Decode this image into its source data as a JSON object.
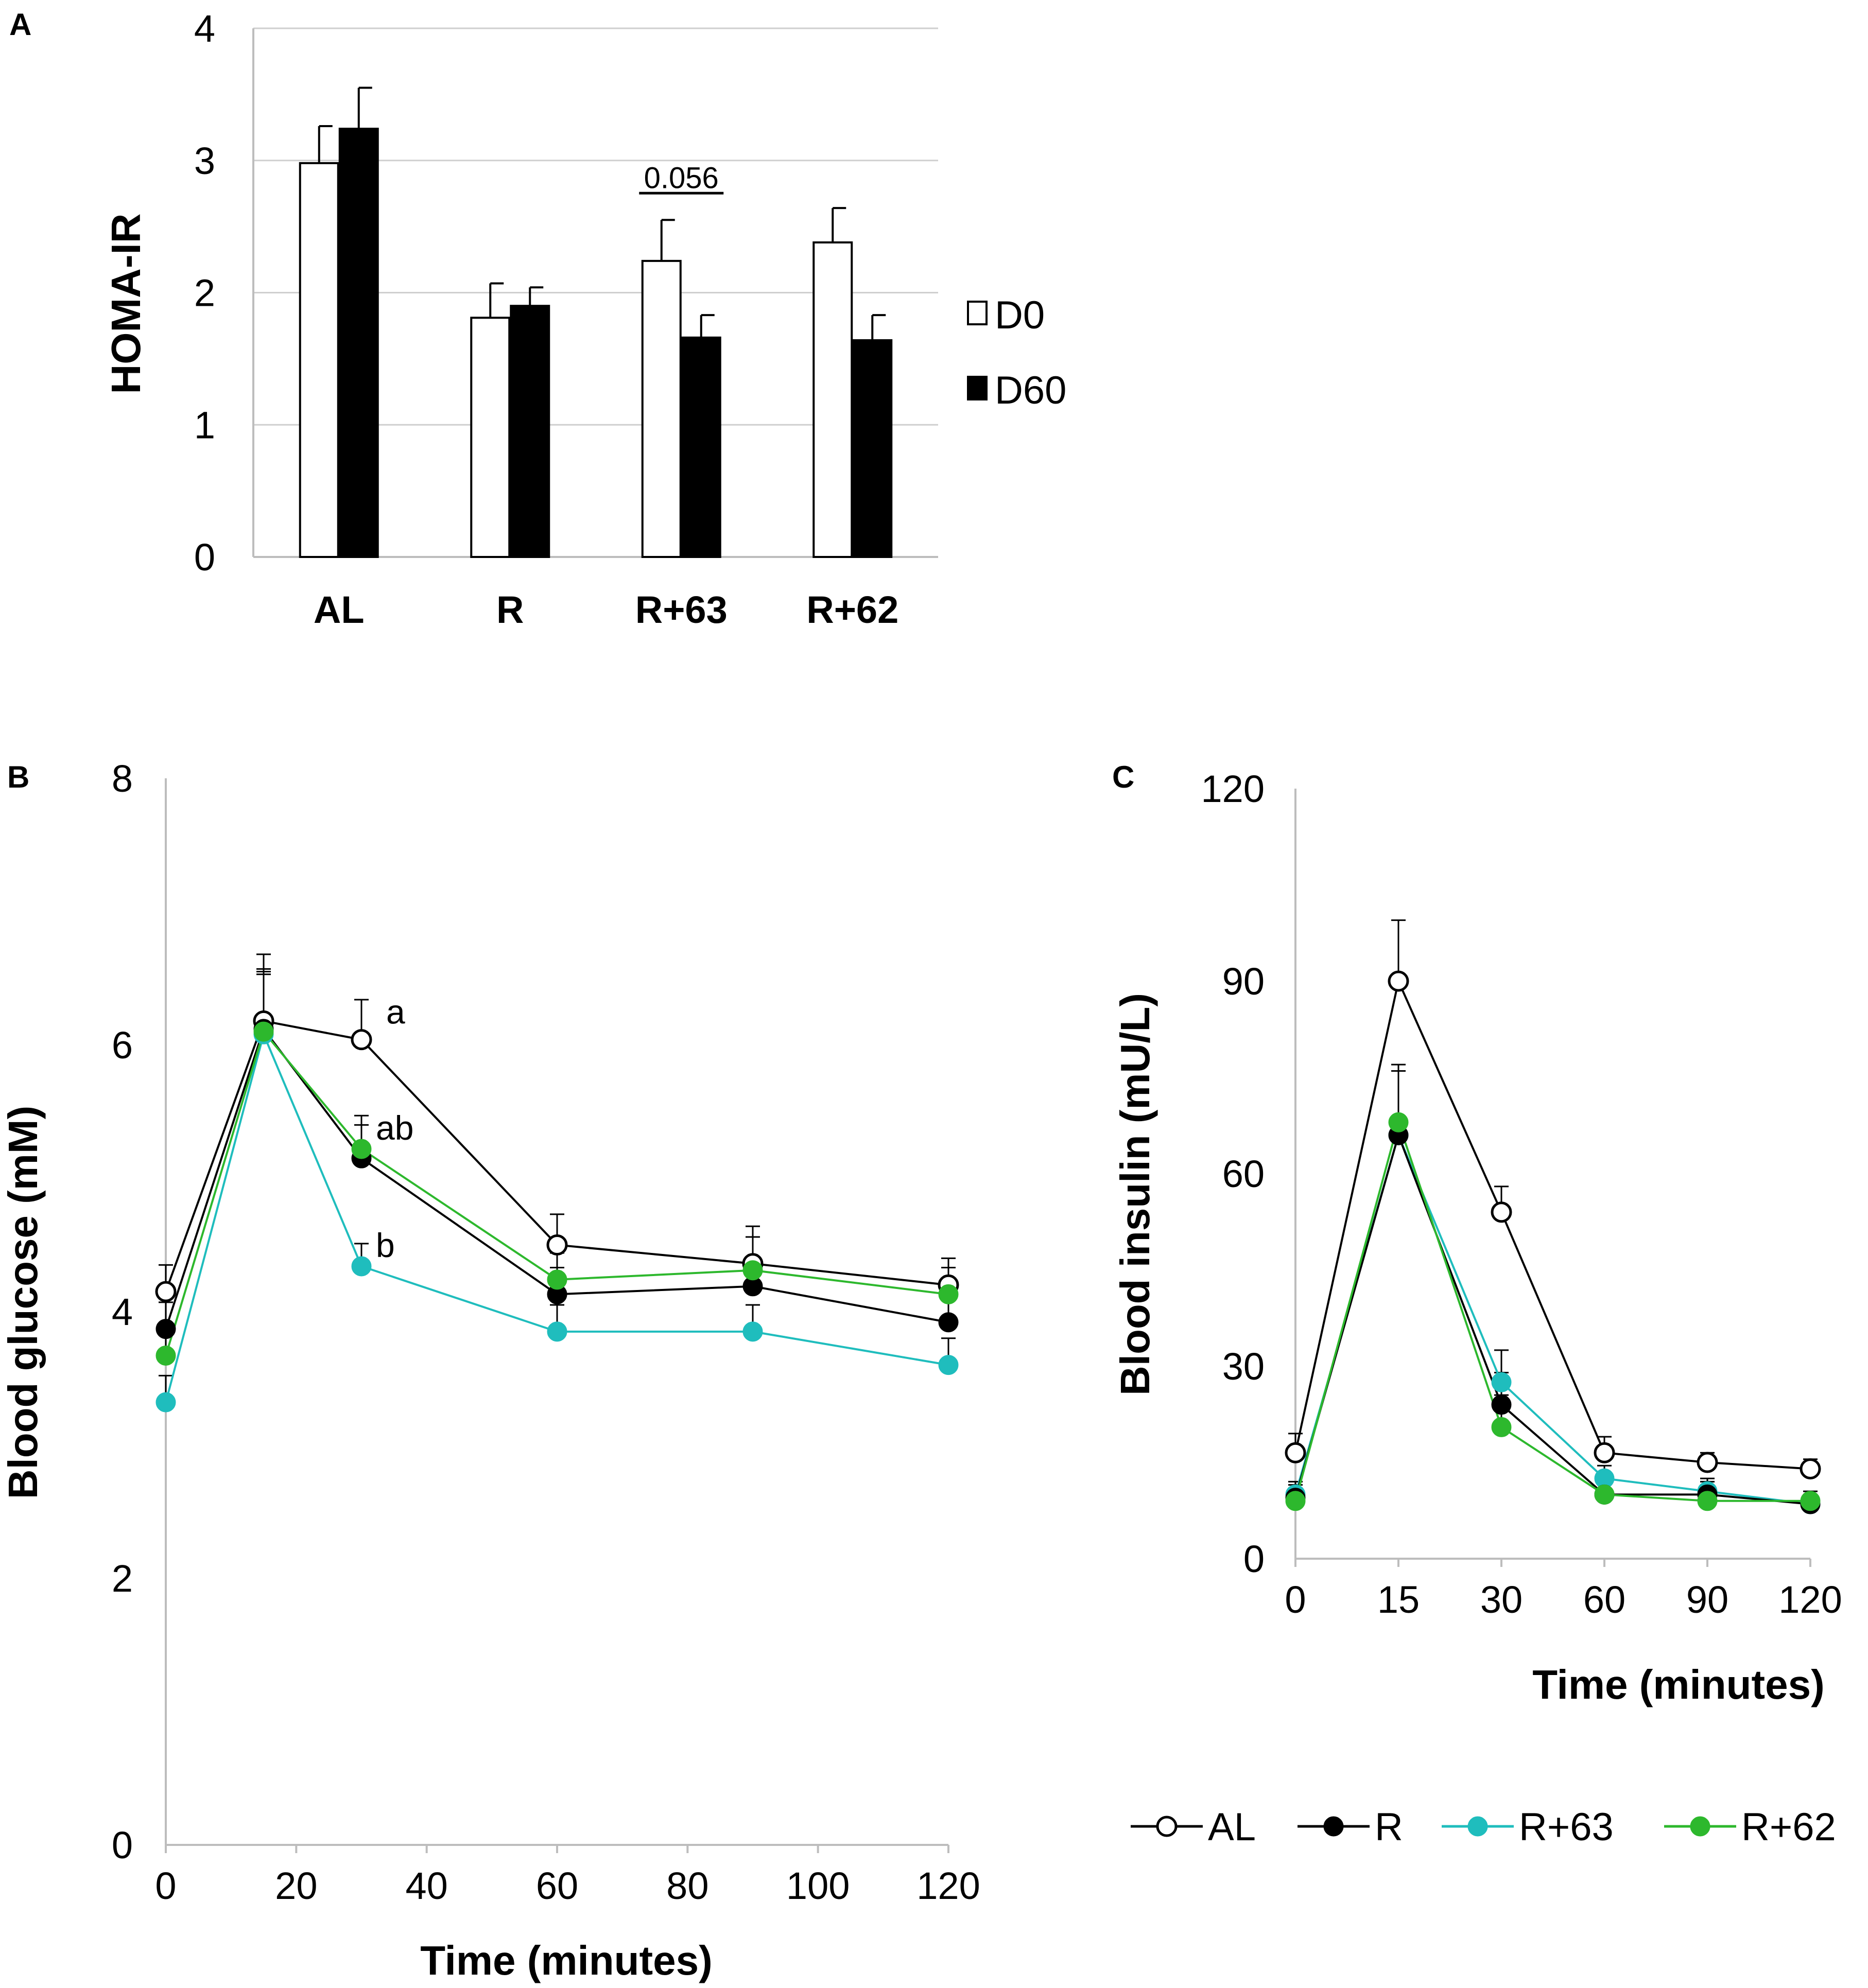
{
  "chart_data": [
    {
      "panel": "A",
      "type": "bar",
      "title": "",
      "xlabel": "",
      "ylabel": "HOMA-IR",
      "ylim": [
        0,
        4
      ],
      "yticks": [
        "0",
        "1",
        "2",
        "3",
        "4"
      ],
      "grid": true,
      "categories": [
        "AL",
        "R",
        "R+63",
        "R+62"
      ],
      "series": [
        {
          "name": "D0",
          "fill": "#ffffff",
          "values": [
            2.98,
            1.81,
            2.24,
            2.38
          ],
          "errors": [
            0.28,
            0.26,
            0.31,
            0.26
          ]
        },
        {
          "name": "D60",
          "fill": "#000000",
          "values": [
            3.24,
            1.9,
            1.66,
            1.64
          ],
          "errors": [
            0.31,
            0.14,
            0.17,
            0.19
          ]
        }
      ],
      "annotations": [
        {
          "text": "0.056",
          "category": "R+63"
        }
      ],
      "legend": "right"
    },
    {
      "panel": "B",
      "type": "line",
      "title": "",
      "xlabel": "Time (minutes)",
      "ylabel": "Blood glucose (mM)",
      "xlim": [
        0,
        120
      ],
      "ylim": [
        0,
        8
      ],
      "xticks": [
        "0",
        "20",
        "40",
        "60",
        "80",
        "100",
        "120"
      ],
      "yticks": [
        "0",
        "2",
        "4",
        "6",
        "8"
      ],
      "x": [
        0,
        15,
        30,
        60,
        90,
        120
      ],
      "series": [
        {
          "name": "AL",
          "color": "#000000",
          "marker": "open",
          "values": [
            4.15,
            6.18,
            6.04,
            4.5,
            4.36,
            4.2
          ],
          "errors": [
            0.2,
            0.5,
            0.3,
            0.23,
            0.28,
            0.2
          ]
        },
        {
          "name": "R",
          "color": "#000000",
          "marker": "filled",
          "values": [
            3.87,
            6.12,
            5.15,
            4.13,
            4.19,
            3.92
          ],
          "errors": [
            0.2,
            0.45,
            0.25,
            0.2,
            0.2,
            0.2
          ]
        },
        {
          "name": "R+63",
          "color": "#1fbdbd",
          "marker": "filled",
          "values": [
            3.32,
            6.08,
            4.34,
            3.85,
            3.85,
            3.6
          ],
          "errors": [
            0.2,
            0.45,
            0.17,
            0.2,
            0.2,
            0.2
          ]
        },
        {
          "name": "R+62",
          "color": "#2db82d",
          "marker": "filled",
          "values": [
            3.67,
            6.1,
            5.22,
            4.24,
            4.31,
            4.13
          ],
          "errors": [
            0.2,
            0.45,
            0.25,
            0.2,
            0.25,
            0.2
          ]
        }
      ],
      "annotations": [
        {
          "text": "a",
          "x": 30,
          "y": 6.04
        },
        {
          "text": "ab",
          "x": 30,
          "y": 5.22
        },
        {
          "text": "b",
          "x": 30,
          "y": 4.34
        }
      ]
    },
    {
      "panel": "C",
      "type": "line",
      "title": "",
      "xlabel": "Time (minutes)",
      "ylabel": "Blood insulin (mU/L)",
      "ylim": [
        0,
        120
      ],
      "yticks": [
        "0",
        "30",
        "60",
        "90",
        "120"
      ],
      "categories": [
        "0",
        "15",
        "30",
        "60",
        "90",
        "120"
      ],
      "series": [
        {
          "name": "AL",
          "color": "#000000",
          "marker": "open",
          "values": [
            16.5,
            90,
            54,
            16.5,
            15,
            14
          ],
          "errors": [
            3,
            9.5,
            4,
            2.5,
            1.5,
            1.5
          ]
        },
        {
          "name": "R",
          "color": "#000000",
          "marker": "filled",
          "values": [
            9.5,
            66,
            24,
            10,
            10,
            8.5
          ],
          "errors": [
            2,
            10,
            5,
            2,
            2,
            1.5
          ]
        },
        {
          "name": "R+63",
          "color": "#1fbdbd",
          "marker": "filled",
          "values": [
            10,
            66,
            27.5,
            12.5,
            10.5,
            8.5
          ],
          "errors": [
            2,
            10,
            5,
            2,
            2,
            1.5
          ]
        },
        {
          "name": "R+62",
          "color": "#2db82d",
          "marker": "filled",
          "values": [
            9,
            68,
            20.5,
            10,
            9,
            9
          ],
          "errors": [
            2,
            9,
            5,
            2,
            2,
            1.5
          ]
        }
      ]
    }
  ],
  "panel_labels": {
    "a": "A",
    "b": "B",
    "c": "C"
  },
  "shared_legend": {
    "position": "bottom-right",
    "items": [
      "AL",
      "R",
      "R+63",
      "R+62"
    ]
  }
}
